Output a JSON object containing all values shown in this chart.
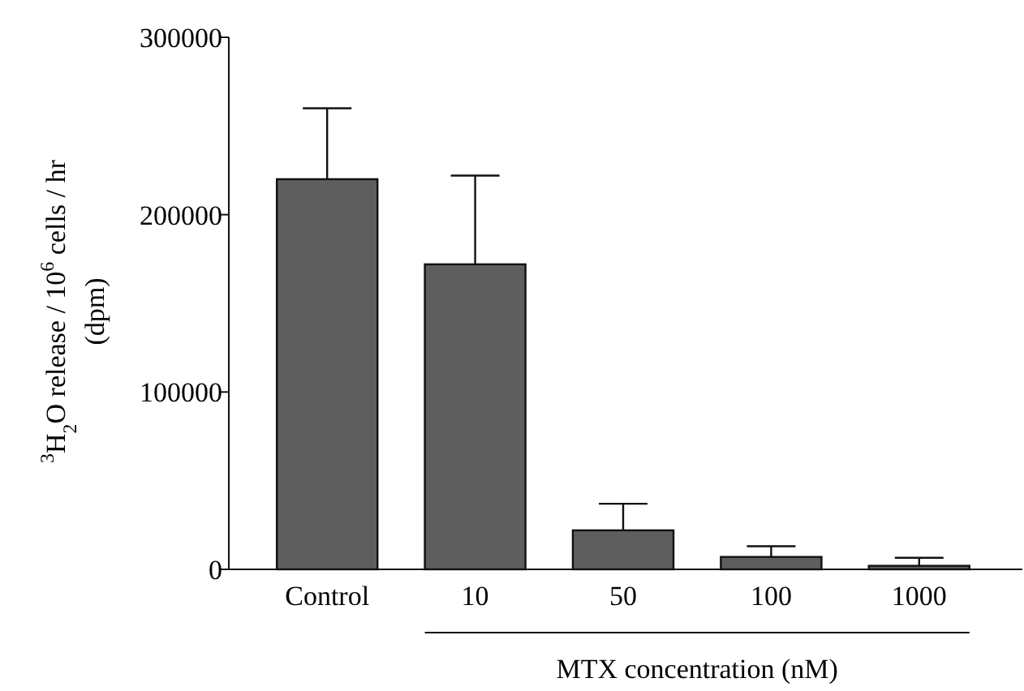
{
  "chart_data": {
    "type": "bar",
    "ylabel": "$^{3}$H$_{2}$O release / 10$^{6}$ cells / hr\n(dpm)",
    "xlabel": "MTX concentration (nM)",
    "categories": [
      "Control",
      "10",
      "50",
      "100",
      "1000"
    ],
    "values": [
      220000,
      172000,
      22000,
      7000,
      2000
    ],
    "errors": [
      [
        220000,
        260000
      ],
      [
        172000,
        222000
      ],
      [
        22000,
        37000
      ],
      [
        7000,
        13000
      ],
      [
        2000,
        6500
      ]
    ],
    "color": "#5e5e5e",
    "ylim": [
      0,
      300000
    ],
    "yticks": [
      0,
      100000,
      200000,
      300000
    ],
    "grid": false
  }
}
